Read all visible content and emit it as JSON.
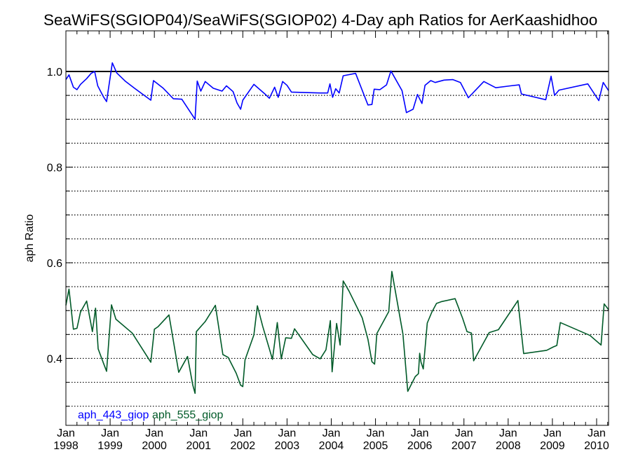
{
  "chart_data": {
    "type": "line",
    "title": "SeaWiFS(SGIOP04)/SeaWiFS(SGIOP02) 4-Day aph Ratios for AerKaashidhoo",
    "ylabel": "aph Ratio",
    "xlabel": "",
    "xlim": [
      1998.0,
      2010.27
    ],
    "ylim": [
      0.26,
      1.085
    ],
    "yticks": [
      {
        "value": 0.4,
        "label": "0.4"
      },
      {
        "value": 0.6,
        "label": "0.6"
      },
      {
        "value": 0.8,
        "label": "0.8"
      },
      {
        "value": 1.0,
        "label": "1.0"
      }
    ],
    "grid_y": [
      0.3,
      0.35,
      0.4,
      0.45,
      0.5,
      0.55,
      0.6,
      0.65,
      0.7,
      0.75,
      0.8,
      0.85,
      0.9,
      0.95
    ],
    "reference_line": 1.0,
    "xticks": [
      {
        "value": 1998,
        "month": "Jan",
        "year": "1998"
      },
      {
        "value": 1999,
        "month": "Jan",
        "year": "1999"
      },
      {
        "value": 2000,
        "month": "Jan",
        "year": "2000"
      },
      {
        "value": 2001,
        "month": "Jan",
        "year": "2001"
      },
      {
        "value": 2002,
        "month": "Jan",
        "year": "2002"
      },
      {
        "value": 2003,
        "month": "Jan",
        "year": "2003"
      },
      {
        "value": 2004,
        "month": "Jan",
        "year": "2004"
      },
      {
        "value": 2005,
        "month": "Jan",
        "year": "2005"
      },
      {
        "value": 2006,
        "month": "Jan",
        "year": "2006"
      },
      {
        "value": 2007,
        "month": "Jan",
        "year": "2007"
      },
      {
        "value": 2008,
        "month": "Jan",
        "year": "2008"
      },
      {
        "value": 2009,
        "month": "Jan",
        "year": "2009"
      },
      {
        "value": 2010,
        "month": "Jan",
        "year": "2010"
      }
    ],
    "legend_placement": "bottom-left",
    "series": [
      {
        "name": "aph_443_giop",
        "color": "#0000ff",
        "points": [
          [
            1998.0,
            0.983
          ],
          [
            1998.07,
            0.993
          ],
          [
            1998.17,
            0.967
          ],
          [
            1998.25,
            0.962
          ],
          [
            1998.33,
            0.973
          ],
          [
            1998.47,
            0.985
          ],
          [
            1998.57,
            0.996
          ],
          [
            1998.65,
            1.0
          ],
          [
            1998.72,
            0.97
          ],
          [
            1998.85,
            0.947
          ],
          [
            1998.92,
            0.937
          ],
          [
            1999.05,
            1.018
          ],
          [
            1999.15,
            0.997
          ],
          [
            1999.35,
            0.979
          ],
          [
            1999.55,
            0.965
          ],
          [
            1999.92,
            0.94
          ],
          [
            1999.98,
            0.981
          ],
          [
            2000.2,
            0.965
          ],
          [
            2000.43,
            0.943
          ],
          [
            2000.62,
            0.942
          ],
          [
            2000.92,
            0.9
          ],
          [
            2000.97,
            0.98
          ],
          [
            2001.05,
            0.959
          ],
          [
            2001.15,
            0.979
          ],
          [
            2001.33,
            0.965
          ],
          [
            2001.53,
            0.959
          ],
          [
            2001.63,
            0.97
          ],
          [
            2001.78,
            0.958
          ],
          [
            2001.87,
            0.934
          ],
          [
            2001.95,
            0.921
          ],
          [
            2002.0,
            0.94
          ],
          [
            2002.25,
            0.973
          ],
          [
            2002.5,
            0.953
          ],
          [
            2002.6,
            0.944
          ],
          [
            2002.72,
            0.967
          ],
          [
            2002.8,
            0.946
          ],
          [
            2002.9,
            0.979
          ],
          [
            2003.0,
            0.971
          ],
          [
            2003.1,
            0.957
          ],
          [
            2003.75,
            0.955
          ],
          [
            2003.92,
            0.955
          ],
          [
            2003.97,
            0.974
          ],
          [
            2004.03,
            0.946
          ],
          [
            2004.1,
            0.964
          ],
          [
            2004.18,
            0.955
          ],
          [
            2004.27,
            0.991
          ],
          [
            2004.55,
            0.996
          ],
          [
            2004.83,
            0.93
          ],
          [
            2004.92,
            0.931
          ],
          [
            2004.97,
            0.963
          ],
          [
            2005.1,
            0.962
          ],
          [
            2005.25,
            0.972
          ],
          [
            2005.35,
            1.001
          ],
          [
            2005.6,
            0.96
          ],
          [
            2005.7,
            0.914
          ],
          [
            2005.85,
            0.921
          ],
          [
            2005.95,
            0.952
          ],
          [
            2006.05,
            0.933
          ],
          [
            2006.12,
            0.971
          ],
          [
            2006.25,
            0.981
          ],
          [
            2006.35,
            0.977
          ],
          [
            2006.55,
            0.982
          ],
          [
            2006.75,
            0.983
          ],
          [
            2006.92,
            0.977
          ],
          [
            2007.1,
            0.945
          ],
          [
            2007.45,
            0.979
          ],
          [
            2007.72,
            0.966
          ],
          [
            2008.05,
            0.97
          ],
          [
            2008.25,
            0.972
          ],
          [
            2008.3,
            0.953
          ],
          [
            2008.85,
            0.941
          ],
          [
            2008.97,
            0.99
          ],
          [
            2009.05,
            0.95
          ],
          [
            2009.15,
            0.961
          ],
          [
            2009.8,
            0.974
          ],
          [
            2010.05,
            0.939
          ],
          [
            2010.15,
            0.977
          ],
          [
            2010.27,
            0.96
          ]
        ]
      },
      {
        "name": "aph_555_giop",
        "color": "#005a28",
        "points": [
          [
            1998.0,
            0.511
          ],
          [
            1998.07,
            0.545
          ],
          [
            1998.17,
            0.461
          ],
          [
            1998.25,
            0.463
          ],
          [
            1998.33,
            0.497
          ],
          [
            1998.47,
            0.52
          ],
          [
            1998.6,
            0.456
          ],
          [
            1998.67,
            0.505
          ],
          [
            1998.73,
            0.42
          ],
          [
            1998.85,
            0.39
          ],
          [
            1998.92,
            0.373
          ],
          [
            1999.03,
            0.512
          ],
          [
            1999.13,
            0.482
          ],
          [
            1999.5,
            0.453
          ],
          [
            1999.92,
            0.392
          ],
          [
            2000.0,
            0.461
          ],
          [
            2000.08,
            0.466
          ],
          [
            2000.33,
            0.491
          ],
          [
            2000.55,
            0.371
          ],
          [
            2000.75,
            0.404
          ],
          [
            2000.87,
            0.344
          ],
          [
            2000.92,
            0.327
          ],
          [
            2000.95,
            0.456
          ],
          [
            2001.15,
            0.477
          ],
          [
            2001.38,
            0.511
          ],
          [
            2001.55,
            0.408
          ],
          [
            2001.67,
            0.402
          ],
          [
            2001.85,
            0.369
          ],
          [
            2001.95,
            0.344
          ],
          [
            2002.0,
            0.341
          ],
          [
            2002.05,
            0.397
          ],
          [
            2002.25,
            0.449
          ],
          [
            2002.33,
            0.51
          ],
          [
            2002.45,
            0.467
          ],
          [
            2002.67,
            0.398
          ],
          [
            2002.78,
            0.475
          ],
          [
            2002.87,
            0.399
          ],
          [
            2002.97,
            0.443
          ],
          [
            2003.1,
            0.442
          ],
          [
            2003.17,
            0.462
          ],
          [
            2003.58,
            0.408
          ],
          [
            2003.75,
            0.399
          ],
          [
            2003.88,
            0.418
          ],
          [
            2003.98,
            0.479
          ],
          [
            2004.02,
            0.372
          ],
          [
            2004.12,
            0.473
          ],
          [
            2004.2,
            0.428
          ],
          [
            2004.27,
            0.562
          ],
          [
            2004.4,
            0.541
          ],
          [
            2004.7,
            0.485
          ],
          [
            2004.83,
            0.44
          ],
          [
            2004.92,
            0.393
          ],
          [
            2004.98,
            0.388
          ],
          [
            2005.03,
            0.452
          ],
          [
            2005.3,
            0.498
          ],
          [
            2005.37,
            0.582
          ],
          [
            2005.62,
            0.451
          ],
          [
            2005.73,
            0.331
          ],
          [
            2005.9,
            0.362
          ],
          [
            2005.97,
            0.368
          ],
          [
            2006.0,
            0.411
          ],
          [
            2006.03,
            0.392
          ],
          [
            2006.08,
            0.378
          ],
          [
            2006.17,
            0.474
          ],
          [
            2006.27,
            0.496
          ],
          [
            2006.38,
            0.515
          ],
          [
            2006.5,
            0.519
          ],
          [
            2006.8,
            0.525
          ],
          [
            2006.97,
            0.484
          ],
          [
            2007.07,
            0.456
          ],
          [
            2007.17,
            0.453
          ],
          [
            2007.22,
            0.395
          ],
          [
            2007.57,
            0.454
          ],
          [
            2007.78,
            0.46
          ],
          [
            2008.22,
            0.521
          ],
          [
            2008.35,
            0.41
          ],
          [
            2008.87,
            0.417
          ],
          [
            2009.02,
            0.424
          ],
          [
            2009.1,
            0.427
          ],
          [
            2009.18,
            0.475
          ],
          [
            2009.85,
            0.448
          ],
          [
            2010.1,
            0.428
          ],
          [
            2010.17,
            0.514
          ],
          [
            2010.27,
            0.502
          ]
        ]
      }
    ]
  }
}
